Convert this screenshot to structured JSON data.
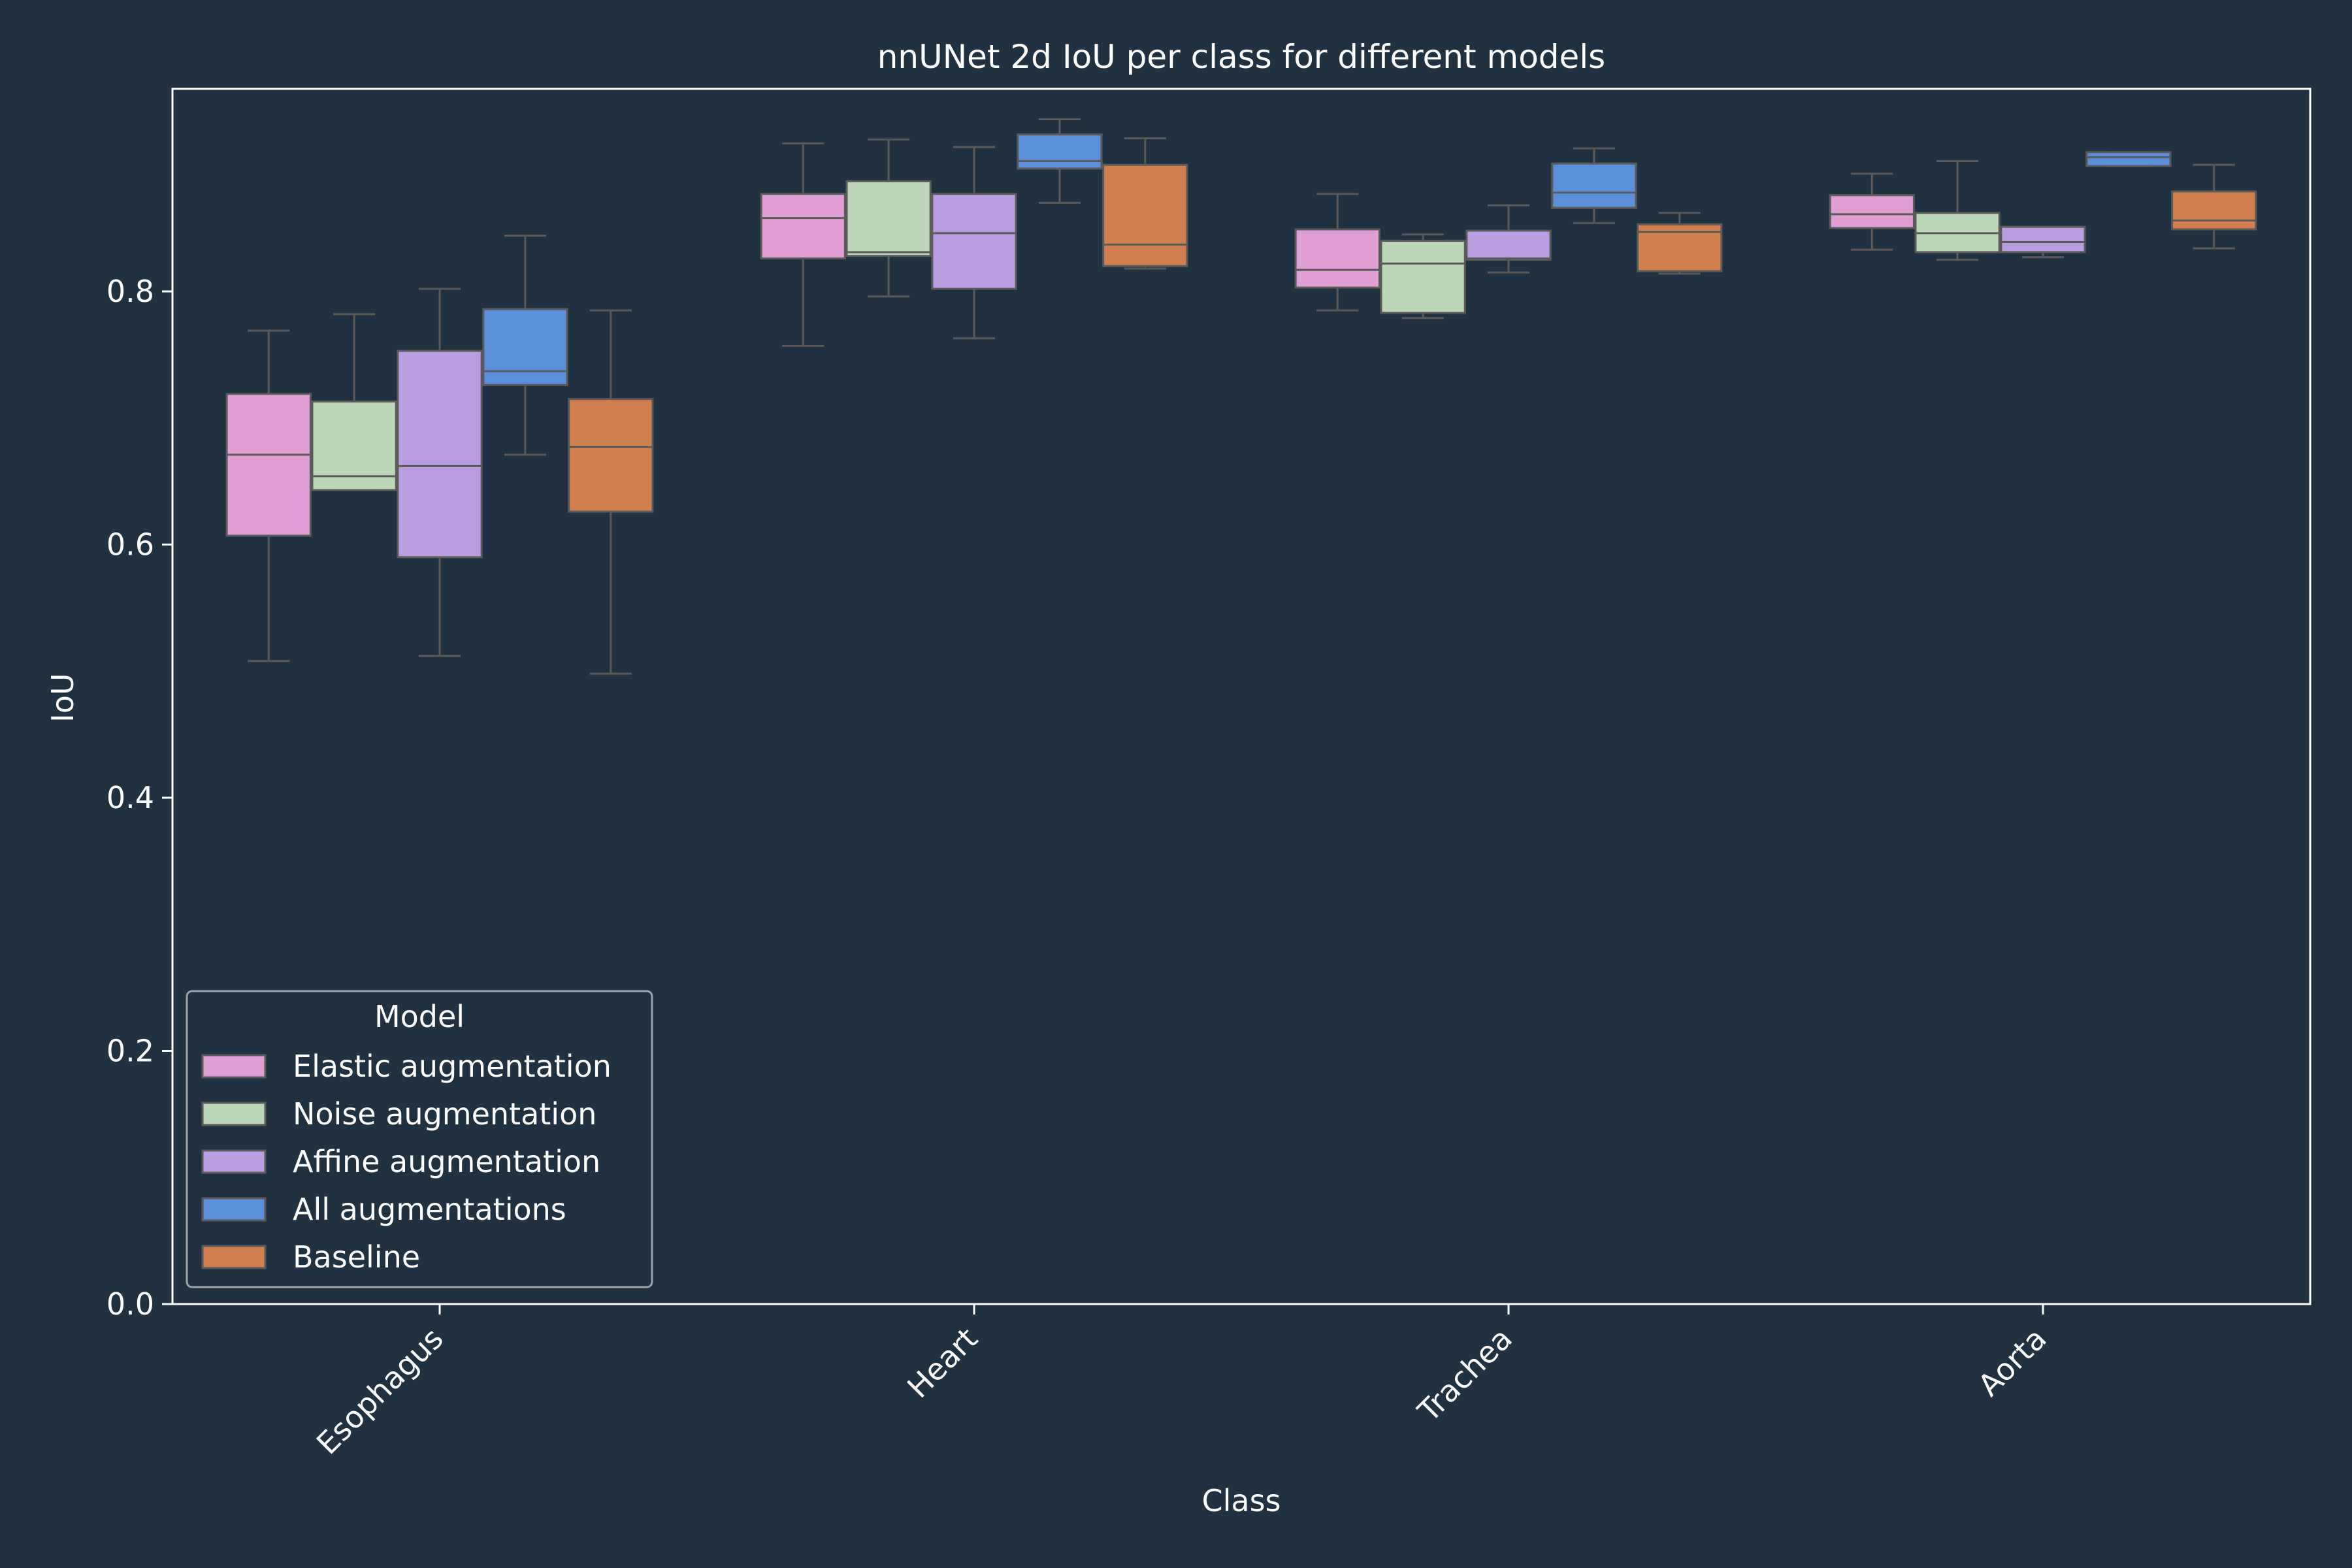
{
  "chart_data": {
    "type": "box",
    "title": "nnUNet 2d IoU per class for different models",
    "xlabel": "Class",
    "ylabel": "IoU",
    "ylim": [
      0.0,
      0.96
    ],
    "yticks": [
      "0.0",
      "0.2",
      "0.4",
      "0.6",
      "0.8"
    ],
    "categories": [
      "Esophagus",
      "Heart",
      "Trachea",
      "Aorta"
    ],
    "legend": {
      "title": "Model",
      "placement": "lower-left"
    },
    "colors": {
      "background": "#203241",
      "axes": "#ffffff",
      "whisker": "#5a5a5a"
    },
    "series": [
      {
        "name": "Elastic augmentation",
        "color": "#e09fd4",
        "boxes": [
          {
            "whislo": 0.508,
            "q1": 0.607,
            "med": 0.671,
            "q3": 0.719,
            "whishi": 0.769
          },
          {
            "whislo": 0.757,
            "q1": 0.826,
            "med": 0.858,
            "q3": 0.877,
            "whishi": 0.917
          },
          {
            "whislo": 0.785,
            "q1": 0.803,
            "med": 0.817,
            "q3": 0.849,
            "whishi": 0.877
          },
          {
            "whislo": 0.833,
            "q1": 0.85,
            "med": 0.861,
            "q3": 0.876,
            "whishi": 0.893
          }
        ]
      },
      {
        "name": "Noise augmentation",
        "color": "#bcd6b8",
        "boxes": [
          {
            "whislo": 0.643,
            "q1": 0.643,
            "med": 0.654,
            "q3": 0.713,
            "whishi": 0.782
          },
          {
            "whislo": 0.796,
            "q1": 0.828,
            "med": 0.831,
            "q3": 0.887,
            "whishi": 0.92
          },
          {
            "whislo": 0.779,
            "q1": 0.783,
            "med": 0.822,
            "q3": 0.84,
            "whishi": 0.845
          },
          {
            "whislo": 0.825,
            "q1": 0.831,
            "med": 0.846,
            "q3": 0.862,
            "whishi": 0.903
          }
        ]
      },
      {
        "name": "Affine augmentation",
        "color": "#b99de0",
        "boxes": [
          {
            "whislo": 0.512,
            "q1": 0.59,
            "med": 0.662,
            "q3": 0.753,
            "whishi": 0.802
          },
          {
            "whislo": 0.763,
            "q1": 0.802,
            "med": 0.846,
            "q3": 0.877,
            "whishi": 0.914
          },
          {
            "whislo": 0.815,
            "q1": 0.825,
            "med": 0.826,
            "q3": 0.848,
            "whishi": 0.868
          },
          {
            "whislo": 0.827,
            "q1": 0.831,
            "med": 0.839,
            "q3": 0.851,
            "whishi": 0.851
          }
        ]
      },
      {
        "name": "All augmentations",
        "color": "#5b8fd9",
        "boxes": [
          {
            "whislo": 0.671,
            "q1": 0.726,
            "med": 0.737,
            "q3": 0.786,
            "whishi": 0.844
          },
          {
            "whislo": 0.87,
            "q1": 0.897,
            "med": 0.903,
            "q3": 0.924,
            "whishi": 0.936
          },
          {
            "whislo": 0.854,
            "q1": 0.866,
            "med": 0.878,
            "q3": 0.901,
            "whishi": 0.913
          },
          {
            "whislo": 0.899,
            "q1": 0.899,
            "med": 0.906,
            "q3": 0.91,
            "whishi": 0.91
          }
        ]
      },
      {
        "name": "Baseline",
        "color": "#d27f4f",
        "boxes": [
          {
            "whislo": 0.498,
            "q1": 0.626,
            "med": 0.677,
            "q3": 0.715,
            "whishi": 0.785
          },
          {
            "whislo": 0.818,
            "q1": 0.82,
            "med": 0.837,
            "q3": 0.9,
            "whishi": 0.921
          },
          {
            "whislo": 0.814,
            "q1": 0.816,
            "med": 0.847,
            "q3": 0.853,
            "whishi": 0.862
          },
          {
            "whislo": 0.834,
            "q1": 0.849,
            "med": 0.856,
            "q3": 0.879,
            "whishi": 0.9
          }
        ]
      }
    ]
  }
}
